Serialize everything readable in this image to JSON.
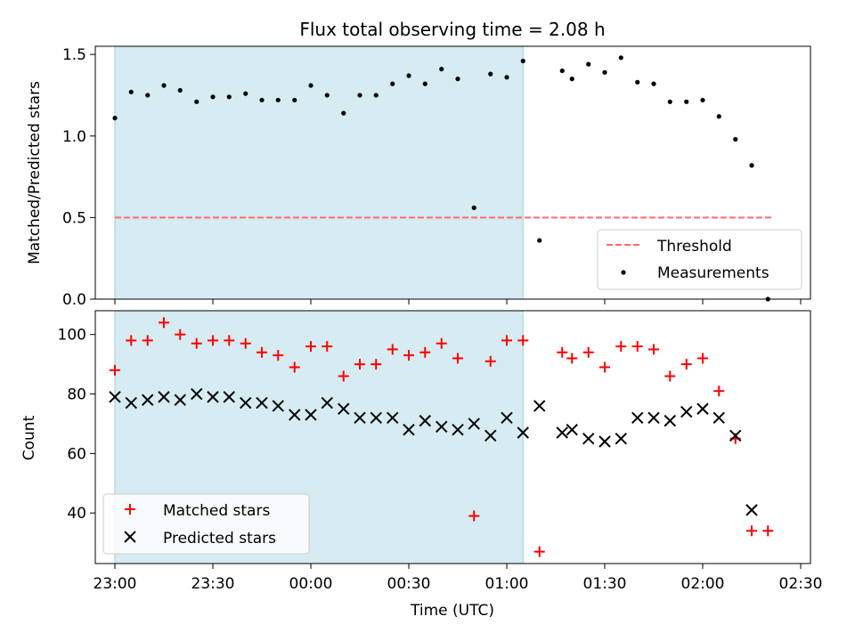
{
  "chart_data": [
    {
      "type": "scatter",
      "title": "Flux total observing time = 2.08 h",
      "xlabel": "",
      "ylabel": "Matched/Predicted stars",
      "xlim": [
        -0.1,
        3.55
      ],
      "ylim": [
        0,
        1.55
      ],
      "yticks": [
        0.0,
        0.5,
        1.0,
        1.5
      ],
      "ytick_labels": [
        "0.0",
        "0.5",
        "1.0",
        "1.5"
      ],
      "grid": false,
      "shaded_region": {
        "x": [
          0.0,
          2.083
        ],
        "color": "#add8e6"
      },
      "threshold": {
        "name": "Threshold",
        "y": 0.5,
        "x": [
          0.0,
          3.35
        ],
        "color": "#ff6b6b",
        "style": "dashed"
      },
      "series": [
        {
          "name": "Measurements",
          "marker": "dot",
          "color": "#000000",
          "x": [
            0.0,
            0.083,
            0.167,
            0.25,
            0.333,
            0.417,
            0.5,
            0.583,
            0.667,
            0.75,
            0.833,
            0.917,
            1.0,
            1.083,
            1.167,
            1.25,
            1.333,
            1.417,
            1.5,
            1.583,
            1.667,
            1.75,
            1.833,
            1.917,
            2.0,
            2.083,
            2.167,
            2.283,
            2.333,
            2.417,
            2.5,
            2.583,
            2.667,
            2.75,
            2.833,
            2.917,
            3.0,
            3.083,
            3.167,
            3.25,
            3.333
          ],
          "y": [
            1.11,
            1.27,
            1.25,
            1.31,
            1.28,
            1.21,
            1.24,
            1.24,
            1.26,
            1.22,
            1.22,
            1.22,
            1.31,
            1.25,
            1.14,
            1.25,
            1.25,
            1.32,
            1.37,
            1.32,
            1.41,
            1.35,
            0.56,
            1.38,
            1.36,
            1.46,
            0.36,
            1.4,
            1.35,
            1.44,
            1.39,
            1.48,
            1.33,
            1.32,
            1.21,
            1.21,
            1.22,
            1.12,
            0.98,
            0.82,
            0.0
          ]
        }
      ],
      "legend": {
        "position": "lower-right",
        "entries": [
          "Threshold",
          "Measurements"
        ]
      }
    },
    {
      "type": "scatter",
      "title": "",
      "xlabel": "Time (UTC)",
      "ylabel": "Count",
      "xlim": [
        -0.1,
        3.55
      ],
      "ylim": [
        23,
        108
      ],
      "yticks": [
        40,
        60,
        80,
        100
      ],
      "ytick_labels": [
        "40",
        "60",
        "80",
        "100"
      ],
      "xticks": [
        0.0,
        0.5,
        1.0,
        1.5,
        2.0,
        2.5,
        3.0,
        3.5
      ],
      "xtick_labels": [
        "23:00",
        "23:30",
        "00:00",
        "00:30",
        "01:00",
        "01:30",
        "02:00",
        "02:30"
      ],
      "grid": false,
      "shaded_region": {
        "x": [
          0.0,
          2.083
        ],
        "color": "#add8e6"
      },
      "series": [
        {
          "name": "Matched stars",
          "marker": "plus",
          "color": "#ff0000",
          "x": [
            0.0,
            0.083,
            0.167,
            0.25,
            0.333,
            0.417,
            0.5,
            0.583,
            0.667,
            0.75,
            0.833,
            0.917,
            1.0,
            1.083,
            1.167,
            1.25,
            1.333,
            1.417,
            1.5,
            1.583,
            1.667,
            1.75,
            1.833,
            1.917,
            2.0,
            2.083,
            2.167,
            2.283,
            2.333,
            2.417,
            2.5,
            2.583,
            2.667,
            2.75,
            2.833,
            2.917,
            3.0,
            3.083,
            3.167,
            3.25,
            3.333
          ],
          "y": [
            88,
            98,
            98,
            104,
            100,
            97,
            98,
            98,
            97,
            94,
            93,
            89,
            96,
            96,
            86,
            90,
            90,
            95,
            93,
            94,
            97,
            92,
            39,
            91,
            98,
            98,
            27,
            94,
            92,
            94,
            89,
            96,
            96,
            95,
            86,
            90,
            92,
            81,
            65,
            34,
            34
          ]
        },
        {
          "name": "Predicted stars",
          "marker": "x",
          "color": "#000000",
          "x": [
            0.0,
            0.083,
            0.167,
            0.25,
            0.333,
            0.417,
            0.5,
            0.583,
            0.667,
            0.75,
            0.833,
            0.917,
            1.0,
            1.083,
            1.167,
            1.25,
            1.333,
            1.417,
            1.5,
            1.583,
            1.667,
            1.75,
            1.833,
            1.917,
            2.0,
            2.083,
            2.167,
            2.283,
            2.333,
            2.417,
            2.5,
            2.583,
            2.667,
            2.75,
            2.833,
            2.917,
            3.0,
            3.083,
            3.167,
            3.25
          ],
          "y": [
            79,
            77,
            78,
            79,
            78,
            80,
            79,
            79,
            77,
            77,
            76,
            73,
            73,
            77,
            75,
            72,
            72,
            72,
            68,
            71,
            69,
            68,
            70,
            66,
            72,
            67,
            76,
            67,
            68,
            65,
            64,
            65,
            72,
            72,
            71,
            74,
            75,
            72,
            66,
            41
          ]
        }
      ],
      "legend": {
        "position": "lower-left",
        "entries": [
          "Matched stars",
          "Predicted stars"
        ]
      }
    }
  ]
}
